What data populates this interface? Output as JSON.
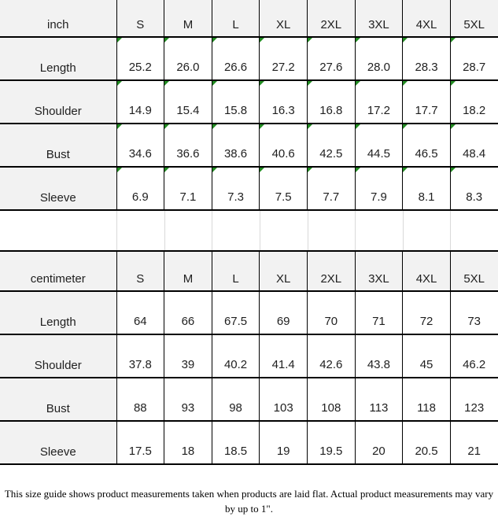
{
  "tables": [
    {
      "unit_label": "inch",
      "sizes": [
        "S",
        "M",
        "L",
        "XL",
        "2XL",
        "3XL",
        "4XL",
        "5XL"
      ],
      "rows": [
        {
          "label": "Length",
          "values": [
            "25.2",
            "26.0",
            "26.6",
            "27.2",
            "27.6",
            "28.0",
            "28.3",
            "28.7"
          ]
        },
        {
          "label": "Shoulder",
          "values": [
            "14.9",
            "15.4",
            "15.8",
            "16.3",
            "16.8",
            "17.2",
            "17.7",
            "18.2"
          ]
        },
        {
          "label": "Bust",
          "values": [
            "34.6",
            "36.6",
            "38.6",
            "40.6",
            "42.5",
            "44.5",
            "46.5",
            "48.4"
          ]
        },
        {
          "label": "Sleeve",
          "values": [
            "6.9",
            "7.1",
            "7.3",
            "7.5",
            "7.7",
            "7.9",
            "8.1",
            "8.3"
          ]
        }
      ],
      "has_error_indicators": true
    },
    {
      "unit_label": "centimeter",
      "sizes": [
        "S",
        "M",
        "L",
        "XL",
        "2XL",
        "3XL",
        "4XL",
        "5XL"
      ],
      "rows": [
        {
          "label": "Length",
          "values": [
            "64",
            "66",
            "67.5",
            "69",
            "70",
            "71",
            "72",
            "73"
          ]
        },
        {
          "label": "Shoulder",
          "values": [
            "37.8",
            "39",
            "40.2",
            "41.4",
            "42.6",
            "43.8",
            "45",
            "46.2"
          ]
        },
        {
          "label": "Bust",
          "values": [
            "88",
            "93",
            "98",
            "103",
            "108",
            "113",
            "118",
            "123"
          ]
        },
        {
          "label": "Sleeve",
          "values": [
            "17.5",
            "18",
            "18.5",
            "19",
            "19.5",
            "20",
            "20.5",
            "21"
          ]
        }
      ],
      "has_error_indicators": false
    }
  ],
  "footer": {
    "note": "This size guide shows product measurements taken when products are laid flat. Actual product measurements may vary by up to 1\"."
  },
  "colors": {
    "header_bg": "#f2f2f2",
    "grid_line": "#000000",
    "spacer_grid_line": "#d9d9d9",
    "error_indicator_green": "#228b22",
    "cell_bg": "#ffffff",
    "text": "#1f1f1f"
  },
  "chart_data": [
    {
      "type": "table",
      "title": "inch",
      "columns": [
        "inch",
        "S",
        "M",
        "L",
        "XL",
        "2XL",
        "3XL",
        "4XL",
        "5XL"
      ],
      "rows": [
        [
          "Length",
          25.2,
          26.0,
          26.6,
          27.2,
          27.6,
          28.0,
          28.3,
          28.7
        ],
        [
          "Shoulder",
          14.9,
          15.4,
          15.8,
          16.3,
          16.8,
          17.2,
          17.7,
          18.2
        ],
        [
          "Bust",
          34.6,
          36.6,
          38.6,
          40.6,
          42.5,
          44.5,
          46.5,
          48.4
        ],
        [
          "Sleeve",
          6.9,
          7.1,
          7.3,
          7.5,
          7.7,
          7.9,
          8.1,
          8.3
        ]
      ]
    },
    {
      "type": "table",
      "title": "centimeter",
      "columns": [
        "centimeter",
        "S",
        "M",
        "L",
        "XL",
        "2XL",
        "3XL",
        "4XL",
        "5XL"
      ],
      "rows": [
        [
          "Length",
          64,
          66,
          67.5,
          69,
          70,
          71,
          72,
          73
        ],
        [
          "Shoulder",
          37.8,
          39,
          40.2,
          41.4,
          42.6,
          43.8,
          45,
          46.2
        ],
        [
          "Bust",
          88,
          93,
          98,
          103,
          108,
          113,
          118,
          123
        ],
        [
          "Sleeve",
          17.5,
          18,
          18.5,
          19,
          19.5,
          20,
          20.5,
          21
        ]
      ]
    }
  ]
}
